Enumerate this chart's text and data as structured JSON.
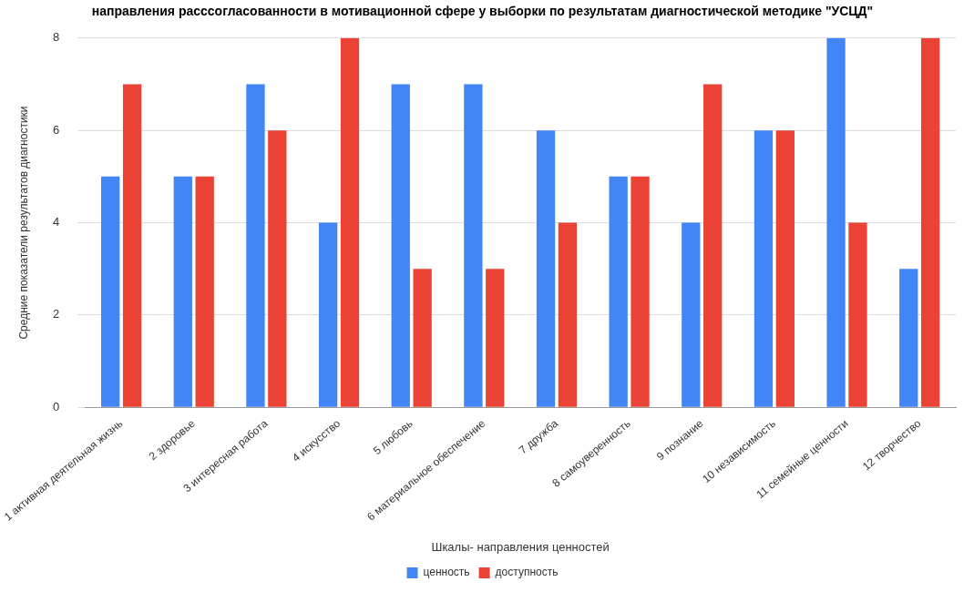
{
  "chart_data": {
    "type": "bar",
    "title": "направления расссогласованности в мотивационной сфере у выборки по результатам диагностической методике \"УСЦД\"",
    "xlabel": "Шкалы- направления ценностей",
    "ylabel": "Средние показатели результатов диагностики",
    "categories": [
      "1 активная деятельная жизнь",
      "2 здоровье",
      "3 интересная работа",
      "4 искусство",
      "5 любовь",
      "6 материальное обеспечение",
      "7 дружба",
      "8 самоуверенность",
      "9 познание",
      "10 независимость",
      "11 семейные ценности",
      "12 творчество"
    ],
    "series": [
      {
        "name": "ценность",
        "color": "#4285f4",
        "values": [
          5,
          5,
          7,
          4,
          7,
          7,
          6,
          5,
          4,
          6,
          8,
          3
        ]
      },
      {
        "name": "доступность",
        "color": "#ea4335",
        "values": [
          7,
          5,
          6,
          8,
          3,
          3,
          4,
          5,
          7,
          6,
          4,
          8
        ]
      }
    ],
    "ylim": [
      0,
      8
    ],
    "yticks": [
      0,
      2,
      4,
      6,
      8
    ],
    "grid": "y",
    "legend": "bottom"
  }
}
